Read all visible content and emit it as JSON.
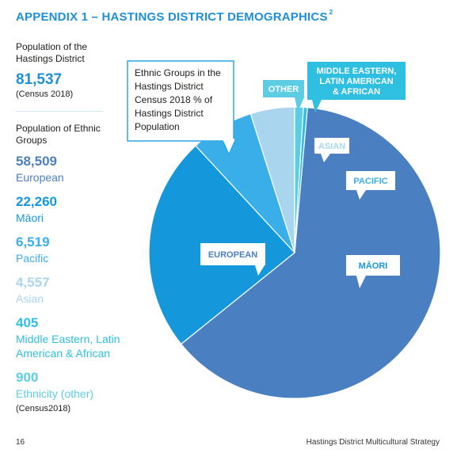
{
  "title": "APPENDIX 1 – HASTINGS DISTRICT DEMOGRAPHICS",
  "title_superscript": "2",
  "population": {
    "label": "Population of the Hastings District",
    "value": "81,537",
    "source": "(Census 2018)"
  },
  "ethnic_groups_label": "Population of Ethnic Groups",
  "stats": [
    {
      "value": "58,509",
      "name": "European",
      "color": "#4a7fc1"
    },
    {
      "value": "22,260",
      "name": "Māori",
      "color": "#1598db"
    },
    {
      "value": "6,519",
      "name": "Pacific",
      "color": "#3aaee8"
    },
    {
      "value": "4,557",
      "name": "Asian",
      "color": "#a9d6ee"
    },
    {
      "value": "405",
      "name": "Middle Eastern, Latin American & African",
      "color": "#2fbfe0"
    },
    {
      "value": "900",
      "name": "Ethnicity (other)",
      "color": "#5ccde3"
    }
  ],
  "stats_source": "(Census2018)",
  "footer": {
    "page_number": "16",
    "document": "Hastings District Multicultural Strategy"
  },
  "chart_data": {
    "type": "pie",
    "title": "Ethnic Groups in the Hastings District Census 2018 % of Hastings District Population",
    "categories": [
      "EUROPEAN",
      "MĀORI",
      "PACIFIC",
      "ASIAN",
      "MIDDLE EASTERN, LATIN AMERICAN & AFRICAN",
      "OTHER"
    ],
    "values": [
      58509,
      22260,
      6519,
      4557,
      405,
      900
    ],
    "colors": [
      "#4a7fc1",
      "#1598db",
      "#3aaee8",
      "#a9d6ee",
      "#2fbfe0",
      "#5ccde3"
    ]
  }
}
